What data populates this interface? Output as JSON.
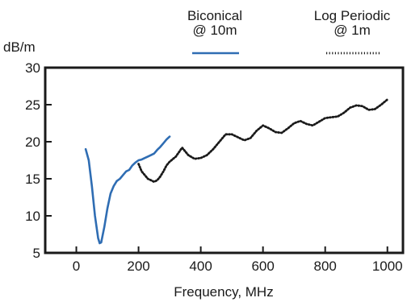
{
  "chart_data": {
    "type": "line",
    "ylabel": "dB/m",
    "xlabel": "Frequency, MHz",
    "xlim": [
      -100,
      1050
    ],
    "ylim": [
      5,
      30
    ],
    "xticks": [
      0,
      200,
      400,
      600,
      800,
      1000
    ],
    "yticks": [
      5,
      10,
      15,
      20,
      25,
      30
    ],
    "grid": false,
    "legend_position": "top-right",
    "series": [
      {
        "name": "Biconical @ 10m",
        "name_lines": [
          "Biconical",
          "@ 10m"
        ],
        "color": "#2f6db3",
        "style": "solid",
        "x": [
          30,
          40,
          50,
          60,
          70,
          75,
          80,
          90,
          100,
          110,
          120,
          130,
          140,
          150,
          160,
          170,
          180,
          190,
          200,
          210,
          220,
          230,
          240,
          250,
          260,
          270,
          280,
          290,
          300
        ],
        "y": [
          19,
          17.5,
          14,
          10,
          7,
          6.3,
          6.4,
          8.5,
          11,
          13,
          14,
          14.7,
          15,
          15.5,
          16,
          16.2,
          16.8,
          17.2,
          17.5,
          17.6,
          17.8,
          18,
          18.2,
          18.4,
          18.9,
          19.3,
          19.8,
          20.3,
          20.7
        ]
      },
      {
        "name": "Log Periodic @ 1m",
        "name_lines": [
          "Log Periodic",
          "@ 1m"
        ],
        "color": "#1a1a1a",
        "style": "dotted",
        "x": [
          200,
          210,
          220,
          230,
          240,
          250,
          260,
          270,
          280,
          290,
          300,
          320,
          340,
          360,
          380,
          400,
          420,
          440,
          460,
          480,
          500,
          520,
          540,
          560,
          580,
          600,
          620,
          640,
          660,
          680,
          700,
          720,
          740,
          760,
          780,
          800,
          820,
          840,
          860,
          880,
          900,
          920,
          940,
          960,
          980,
          1000
        ],
        "y": [
          17,
          16,
          15.5,
          15,
          14.8,
          14.6,
          14.8,
          15.3,
          16,
          16.8,
          17.3,
          18,
          19.2,
          18.2,
          17.7,
          17.8,
          18.2,
          19,
          20,
          21,
          21,
          20.6,
          20.2,
          20.5,
          21.5,
          22.2,
          21.8,
          21.3,
          21.2,
          21.8,
          22.5,
          22.8,
          22.4,
          22.2,
          22.7,
          23.2,
          23.3,
          23.4,
          23.9,
          24.6,
          24.9,
          24.8,
          24.3,
          24.4,
          25,
          25.7
        ]
      }
    ]
  }
}
